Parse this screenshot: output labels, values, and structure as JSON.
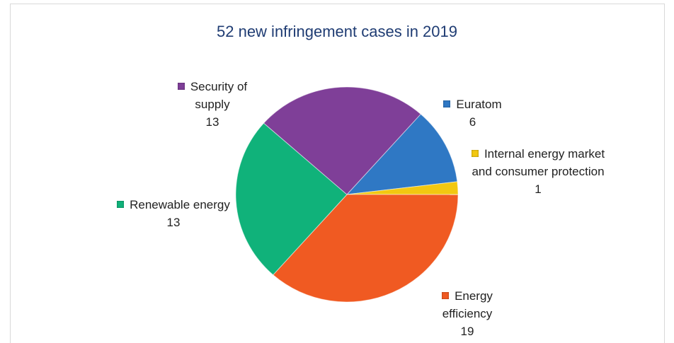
{
  "chart_data": {
    "type": "pie",
    "title": "52 new infringement cases in 2019",
    "categories": [
      "Euratom",
      "Internal energy market and consumer protection",
      "Energy efficiency",
      "Renewable energy",
      "Security of supply"
    ],
    "values": [
      6,
      1,
      19,
      13,
      13
    ],
    "colors": [
      "#2f78c4",
      "#f2c811",
      "#f05a22",
      "#10b27a",
      "#7f3f98"
    ]
  }
}
